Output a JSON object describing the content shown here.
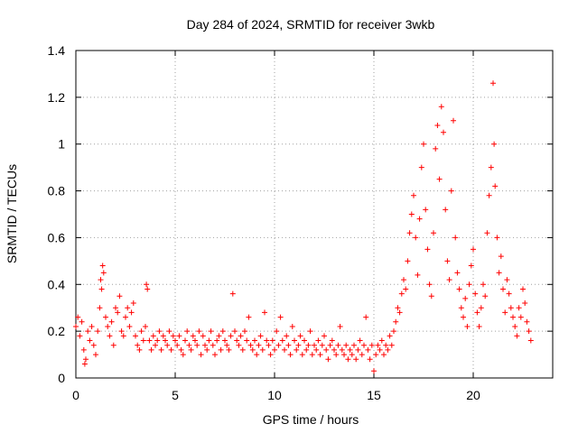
{
  "chart_data": {
    "type": "scatter",
    "title": "Day 284 of 2024, SRMTID for receiver 3wkb",
    "xlabel": "GPS time / hours",
    "ylabel": "SRMTID / TECUs",
    "xlim": [
      0,
      24
    ],
    "ylim": [
      0,
      1.4
    ],
    "x_ticks": [
      0,
      5,
      10,
      15,
      20
    ],
    "y_ticks": [
      0,
      0.2,
      0.4,
      0.6,
      0.8,
      1,
      1.2,
      1.4
    ],
    "x_tick_labels": [
      "0",
      "5",
      "10",
      "15",
      "20"
    ],
    "y_tick_labels": [
      "0",
      "0.2",
      "0.4",
      "0.6",
      "0.8",
      "1",
      "1.2",
      "1.4"
    ],
    "grid": true,
    "marker": "+",
    "marker_color": "#ff0000",
    "series": [
      {
        "name": "SRMTID",
        "points": [
          [
            0.0,
            0.22
          ],
          [
            0.1,
            0.26
          ],
          [
            0.2,
            0.18
          ],
          [
            0.3,
            0.24
          ],
          [
            0.4,
            0.12
          ],
          [
            0.45,
            0.06
          ],
          [
            0.5,
            0.08
          ],
          [
            0.6,
            0.2
          ],
          [
            0.7,
            0.16
          ],
          [
            0.8,
            0.22
          ],
          [
            0.9,
            0.14
          ],
          [
            1.0,
            0.1
          ],
          [
            1.1,
            0.2
          ],
          [
            1.2,
            0.3
          ],
          [
            1.25,
            0.42
          ],
          [
            1.3,
            0.38
          ],
          [
            1.35,
            0.48
          ],
          [
            1.4,
            0.45
          ],
          [
            1.5,
            0.26
          ],
          [
            1.6,
            0.22
          ],
          [
            1.7,
            0.18
          ],
          [
            1.8,
            0.24
          ],
          [
            1.9,
            0.14
          ],
          [
            2.0,
            0.3
          ],
          [
            2.1,
            0.28
          ],
          [
            2.2,
            0.35
          ],
          [
            2.3,
            0.2
          ],
          [
            2.4,
            0.18
          ],
          [
            2.5,
            0.26
          ],
          [
            2.6,
            0.3
          ],
          [
            2.7,
            0.22
          ],
          [
            2.8,
            0.28
          ],
          [
            2.9,
            0.32
          ],
          [
            3.0,
            0.18
          ],
          [
            3.1,
            0.14
          ],
          [
            3.2,
            0.12
          ],
          [
            3.3,
            0.2
          ],
          [
            3.4,
            0.16
          ],
          [
            3.5,
            0.22
          ],
          [
            3.55,
            0.4
          ],
          [
            3.6,
            0.38
          ],
          [
            3.7,
            0.16
          ],
          [
            3.8,
            0.12
          ],
          [
            3.9,
            0.18
          ],
          [
            4.0,
            0.14
          ],
          [
            4.1,
            0.16
          ],
          [
            4.2,
            0.2
          ],
          [
            4.3,
            0.12
          ],
          [
            4.4,
            0.18
          ],
          [
            4.5,
            0.16
          ],
          [
            4.6,
            0.14
          ],
          [
            4.7,
            0.2
          ],
          [
            4.8,
            0.12
          ],
          [
            4.9,
            0.18
          ],
          [
            5.0,
            0.16
          ],
          [
            5.1,
            0.14
          ],
          [
            5.2,
            0.18
          ],
          [
            5.3,
            0.12
          ],
          [
            5.4,
            0.1
          ],
          [
            5.5,
            0.16
          ],
          [
            5.6,
            0.2
          ],
          [
            5.7,
            0.14
          ],
          [
            5.8,
            0.12
          ],
          [
            5.9,
            0.18
          ],
          [
            6.0,
            0.16
          ],
          [
            6.1,
            0.14
          ],
          [
            6.2,
            0.2
          ],
          [
            6.3,
            0.1
          ],
          [
            6.4,
            0.18
          ],
          [
            6.5,
            0.14
          ],
          [
            6.6,
            0.12
          ],
          [
            6.7,
            0.16
          ],
          [
            6.8,
            0.2
          ],
          [
            6.9,
            0.14
          ],
          [
            7.0,
            0.1
          ],
          [
            7.1,
            0.16
          ],
          [
            7.2,
            0.18
          ],
          [
            7.3,
            0.12
          ],
          [
            7.4,
            0.2
          ],
          [
            7.5,
            0.16
          ],
          [
            7.6,
            0.14
          ],
          [
            7.7,
            0.12
          ],
          [
            7.8,
            0.18
          ],
          [
            7.9,
            0.36
          ],
          [
            8.0,
            0.2
          ],
          [
            8.1,
            0.16
          ],
          [
            8.2,
            0.14
          ],
          [
            8.3,
            0.18
          ],
          [
            8.4,
            0.12
          ],
          [
            8.5,
            0.2
          ],
          [
            8.6,
            0.16
          ],
          [
            8.7,
            0.26
          ],
          [
            8.8,
            0.14
          ],
          [
            8.9,
            0.12
          ],
          [
            9.0,
            0.16
          ],
          [
            9.1,
            0.1
          ],
          [
            9.2,
            0.14
          ],
          [
            9.3,
            0.18
          ],
          [
            9.4,
            0.12
          ],
          [
            9.5,
            0.28
          ],
          [
            9.6,
            0.16
          ],
          [
            9.7,
            0.14
          ],
          [
            9.8,
            0.1
          ],
          [
            9.9,
            0.16
          ],
          [
            10.0,
            0.12
          ],
          [
            10.1,
            0.2
          ],
          [
            10.2,
            0.14
          ],
          [
            10.3,
            0.26
          ],
          [
            10.4,
            0.16
          ],
          [
            10.5,
            0.12
          ],
          [
            10.6,
            0.18
          ],
          [
            10.7,
            0.14
          ],
          [
            10.8,
            0.1
          ],
          [
            10.9,
            0.22
          ],
          [
            11.0,
            0.16
          ],
          [
            11.1,
            0.12
          ],
          [
            11.2,
            0.14
          ],
          [
            11.3,
            0.18
          ],
          [
            11.4,
            0.1
          ],
          [
            11.5,
            0.16
          ],
          [
            11.6,
            0.12
          ],
          [
            11.7,
            0.14
          ],
          [
            11.8,
            0.2
          ],
          [
            11.9,
            0.1
          ],
          [
            12.0,
            0.14
          ],
          [
            12.1,
            0.12
          ],
          [
            12.2,
            0.16
          ],
          [
            12.3,
            0.1
          ],
          [
            12.4,
            0.14
          ],
          [
            12.5,
            0.18
          ],
          [
            12.6,
            0.12
          ],
          [
            12.7,
            0.08
          ],
          [
            12.8,
            0.14
          ],
          [
            12.9,
            0.16
          ],
          [
            13.0,
            0.12
          ],
          [
            13.1,
            0.1
          ],
          [
            13.2,
            0.14
          ],
          [
            13.3,
            0.22
          ],
          [
            13.4,
            0.12
          ],
          [
            13.5,
            0.1
          ],
          [
            13.6,
            0.14
          ],
          [
            13.7,
            0.08
          ],
          [
            13.8,
            0.12
          ],
          [
            13.9,
            0.1
          ],
          [
            14.0,
            0.14
          ],
          [
            14.1,
            0.08
          ],
          [
            14.2,
            0.12
          ],
          [
            14.3,
            0.16
          ],
          [
            14.4,
            0.1
          ],
          [
            14.5,
            0.14
          ],
          [
            14.6,
            0.26
          ],
          [
            14.7,
            0.12
          ],
          [
            14.8,
            0.08
          ],
          [
            14.9,
            0.14
          ],
          [
            15.0,
            0.03
          ],
          [
            15.1,
            0.1
          ],
          [
            15.2,
            0.14
          ],
          [
            15.3,
            0.12
          ],
          [
            15.4,
            0.16
          ],
          [
            15.5,
            0.1
          ],
          [
            15.6,
            0.14
          ],
          [
            15.7,
            0.12
          ],
          [
            15.8,
            0.18
          ],
          [
            15.9,
            0.14
          ],
          [
            16.0,
            0.2
          ],
          [
            16.1,
            0.24
          ],
          [
            16.2,
            0.3
          ],
          [
            16.3,
            0.28
          ],
          [
            16.4,
            0.36
          ],
          [
            16.5,
            0.42
          ],
          [
            16.6,
            0.38
          ],
          [
            16.7,
            0.5
          ],
          [
            16.8,
            0.62
          ],
          [
            16.9,
            0.7
          ],
          [
            17.0,
            0.78
          ],
          [
            17.1,
            0.6
          ],
          [
            17.2,
            0.44
          ],
          [
            17.3,
            0.68
          ],
          [
            17.4,
            0.9
          ],
          [
            17.5,
            1.0
          ],
          [
            17.6,
            0.72
          ],
          [
            17.7,
            0.55
          ],
          [
            17.8,
            0.4
          ],
          [
            17.9,
            0.35
          ],
          [
            18.0,
            0.62
          ],
          [
            18.1,
            0.98
          ],
          [
            18.2,
            1.08
          ],
          [
            18.3,
            0.85
          ],
          [
            18.4,
            1.16
          ],
          [
            18.5,
            1.05
          ],
          [
            18.6,
            0.72
          ],
          [
            18.7,
            0.5
          ],
          [
            18.8,
            0.42
          ],
          [
            18.9,
            0.8
          ],
          [
            19.0,
            1.1
          ],
          [
            19.1,
            0.6
          ],
          [
            19.2,
            0.45
          ],
          [
            19.3,
            0.38
          ],
          [
            19.4,
            0.3
          ],
          [
            19.5,
            0.26
          ],
          [
            19.6,
            0.34
          ],
          [
            19.7,
            0.22
          ],
          [
            19.8,
            0.4
          ],
          [
            19.9,
            0.48
          ],
          [
            20.0,
            0.55
          ],
          [
            20.1,
            0.36
          ],
          [
            20.2,
            0.28
          ],
          [
            20.3,
            0.22
          ],
          [
            20.4,
            0.3
          ],
          [
            20.5,
            0.4
          ],
          [
            20.6,
            0.35
          ],
          [
            20.7,
            0.62
          ],
          [
            20.8,
            0.78
          ],
          [
            20.9,
            0.9
          ],
          [
            21.0,
            1.26
          ],
          [
            21.05,
            1.0
          ],
          [
            21.1,
            0.82
          ],
          [
            21.2,
            0.6
          ],
          [
            21.3,
            0.45
          ],
          [
            21.4,
            0.52
          ],
          [
            21.5,
            0.38
          ],
          [
            21.6,
            0.28
          ],
          [
            21.7,
            0.42
          ],
          [
            21.8,
            0.36
          ],
          [
            21.9,
            0.3
          ],
          [
            22.0,
            0.26
          ],
          [
            22.1,
            0.22
          ],
          [
            22.2,
            0.18
          ],
          [
            22.3,
            0.3
          ],
          [
            22.4,
            0.26
          ],
          [
            22.5,
            0.38
          ],
          [
            22.6,
            0.32
          ],
          [
            22.7,
            0.24
          ],
          [
            22.8,
            0.2
          ],
          [
            22.9,
            0.16
          ]
        ]
      }
    ]
  }
}
